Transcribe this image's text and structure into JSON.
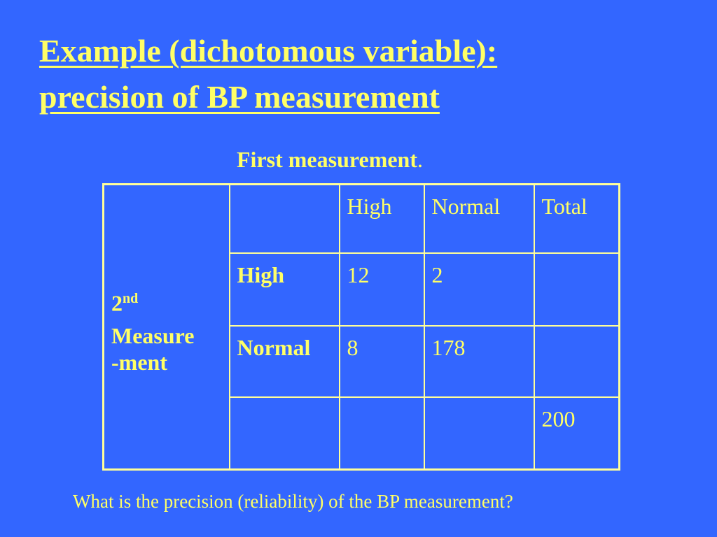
{
  "title": {
    "line1": "Example (dichotomous variable):",
    "line2": "precision of BP measurement"
  },
  "table": {
    "column_heading": "First measurement",
    "column_heading_dot": ".",
    "row_heading": {
      "number": "2",
      "ordinal": "nd",
      "line1": "Measure",
      "line2": "-ment"
    },
    "header": [
      "",
      "High",
      "Normal",
      "Total"
    ],
    "rows": [
      {
        "label": "High",
        "values": [
          "12",
          "2",
          ""
        ]
      },
      {
        "label": "Normal",
        "values": [
          "8",
          "178",
          ""
        ]
      },
      {
        "label": "",
        "values": [
          "",
          "",
          "200"
        ]
      }
    ]
  },
  "question": "What is the precision (reliability) of the BP measurement?"
}
